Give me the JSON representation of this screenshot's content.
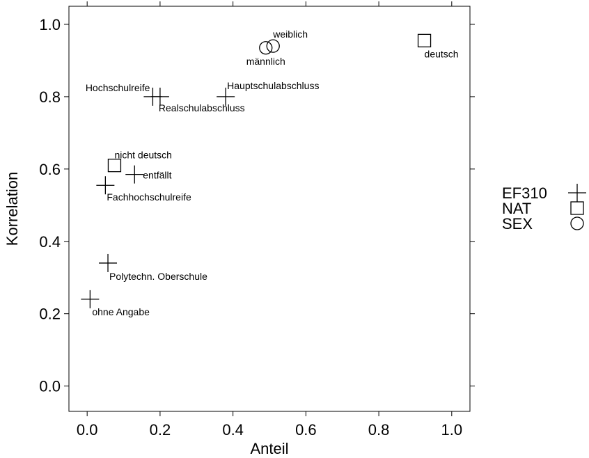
{
  "chart_data": {
    "type": "scatter",
    "xlabel": "Anteil",
    "ylabel": "Korrelation",
    "xlim": [
      -0.05,
      1.05
    ],
    "ylim": [
      -0.07,
      1.05
    ],
    "xticks": [
      "0.0",
      "0.2",
      "0.4",
      "0.6",
      "0.8",
      "1.0"
    ],
    "yticks": [
      "0.0",
      "0.2",
      "0.4",
      "0.6",
      "0.8",
      "1.0"
    ],
    "grid": false,
    "legend_position": "right",
    "series": [
      {
        "name": "EF310",
        "marker": "plus",
        "points": [
          {
            "x": 0.18,
            "y": 0.8,
            "label": "Hochschulreife"
          },
          {
            "x": 0.2,
            "y": 0.8,
            "label": "Realschulabschluss"
          },
          {
            "x": 0.38,
            "y": 0.8,
            "label": "Hauptschulabschluss"
          },
          {
            "x": 0.13,
            "y": 0.585,
            "label": "entfällt"
          },
          {
            "x": 0.05,
            "y": 0.555,
            "label": "Fachhochschulreife"
          },
          {
            "x": 0.057,
            "y": 0.34,
            "label": "Polytechn. Oberschule"
          },
          {
            "x": 0.008,
            "y": 0.24,
            "label": "ohne Angabe"
          }
        ]
      },
      {
        "name": "NAT",
        "marker": "square",
        "points": [
          {
            "x": 0.925,
            "y": 0.955,
            "label": "deutsch"
          },
          {
            "x": 0.075,
            "y": 0.61,
            "label": "nicht deutsch"
          }
        ]
      },
      {
        "name": "SEX",
        "marker": "circle",
        "points": [
          {
            "x": 0.49,
            "y": 0.935,
            "label": "männlich"
          },
          {
            "x": 0.51,
            "y": 0.94,
            "label": "weiblich"
          }
        ]
      }
    ]
  }
}
